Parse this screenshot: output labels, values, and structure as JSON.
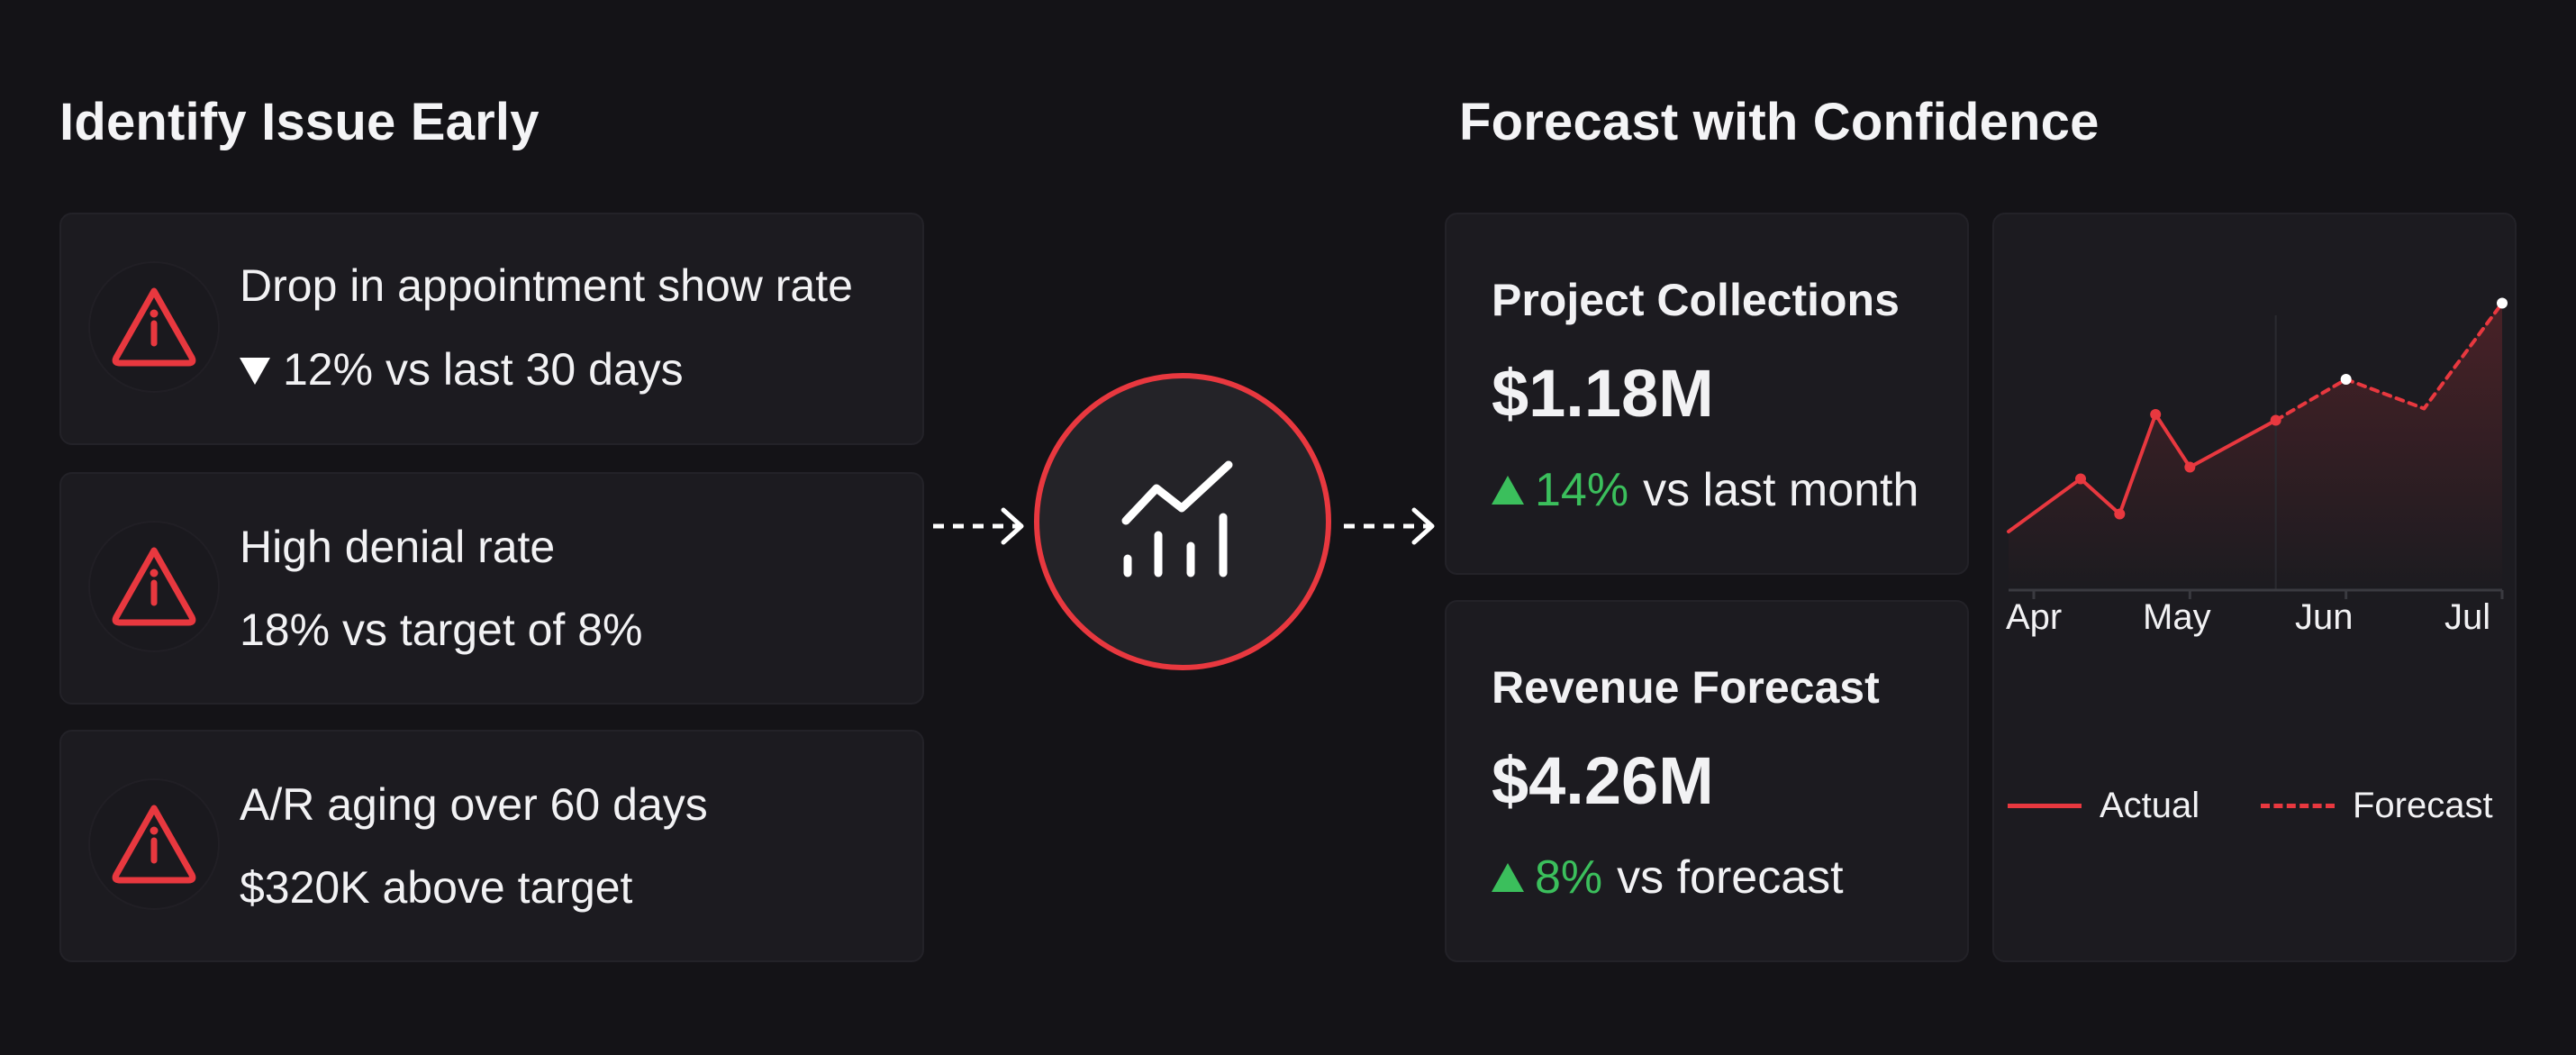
{
  "left": {
    "title": "Identify Issue Early",
    "issues": [
      {
        "title": "Drop in appointment show rate",
        "detail": "12% vs last 30 days",
        "trend": "down"
      },
      {
        "title": "High denial rate",
        "detail": "18% vs target of 8%"
      },
      {
        "title": "A/R aging over 60 days",
        "detail": "$320K above target"
      }
    ],
    "icon": "warning-triangle-icon"
  },
  "center": {
    "icon": "trend-chart-icon"
  },
  "right": {
    "title": "Forecast with Confidence",
    "metrics": [
      {
        "title": "Project Collections",
        "value": "$1.18M",
        "change": "14%",
        "comparison": "vs last month"
      },
      {
        "title": "Revenue Forecast",
        "value": "$4.26M",
        "change": "8%",
        "comparison": "vs forecast"
      }
    ]
  },
  "colors": {
    "background": "#141317",
    "card": "#1c1b20",
    "accent_red": "#e8383f",
    "positive_green": "#3bbf5c"
  },
  "chart_data": {
    "type": "line",
    "x_labels": [
      "Apr",
      "May",
      "Jun",
      "Jul"
    ],
    "series": [
      {
        "name": "Actual",
        "style": "solid",
        "points": [
          [
            0,
            1.0
          ],
          [
            0.3,
            1.9
          ],
          [
            0.55,
            1.3
          ],
          [
            0.78,
            3.0
          ],
          [
            1.0,
            2.1
          ],
          [
            1.55,
            2.9
          ]
        ]
      },
      {
        "name": "Forecast",
        "style": "dashed",
        "points": [
          [
            1.55,
            2.9
          ],
          [
            2.0,
            3.6
          ],
          [
            2.5,
            3.1
          ],
          [
            3.0,
            4.9
          ]
        ]
      }
    ],
    "legend": [
      "Actual",
      "Forecast"
    ],
    "legend_position": "bottom",
    "grid": false
  }
}
